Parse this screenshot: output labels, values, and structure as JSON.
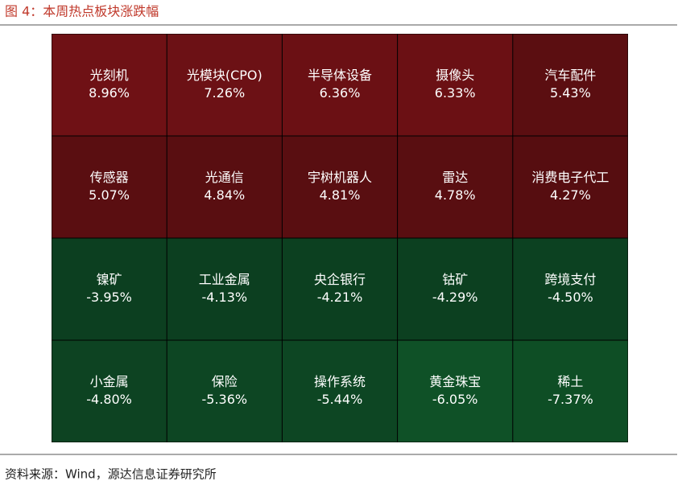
{
  "chart_data": {
    "type": "heatmap",
    "title": "图 4：本周热点板块涨跌幅",
    "source": "资料来源：Wind，源达信息证券研究所",
    "categories": [
      "光刻机",
      "光模块(CPO)",
      "半导体设备",
      "摄像头",
      "汽车配件",
      "传感器",
      "光通信",
      "宇树机器人",
      "雷达",
      "消费电子代工",
      "镍矿",
      "工业金属",
      "央企银行",
      "钴矿",
      "跨境支付",
      "小金属",
      "保险",
      "操作系统",
      "黄金珠宝",
      "稀土"
    ],
    "values": [
      8.96,
      7.26,
      6.36,
      6.33,
      5.43,
      5.07,
      4.84,
      4.81,
      4.78,
      4.27,
      -3.95,
      -4.13,
      -4.21,
      -4.29,
      -4.5,
      -4.8,
      -5.36,
      -5.44,
      -6.05,
      -7.37
    ],
    "value_labels": [
      "8.96%",
      "7.26%",
      "6.36%",
      "6.33%",
      "5.43%",
      "5.07%",
      "4.84%",
      "4.81%",
      "4.78%",
      "4.27%",
      "-3.95%",
      "-4.13%",
      "-4.21%",
      "-4.29%",
      "-4.50%",
      "-4.80%",
      "-5.36%",
      "-5.44%",
      "-6.05%",
      "-7.37%"
    ],
    "colors": [
      "#6f1115",
      "#6c1115",
      "#6b1014",
      "#6b1014",
      "#5b0e11",
      "#5a0e11",
      "#590e11",
      "#590e11",
      "#590e11",
      "#560d10",
      "#0c3f20",
      "#0c3f20",
      "#0c4020",
      "#0c4020",
      "#0c4121",
      "#0d4322",
      "#0d4623",
      "#0d4623",
      "#0f5127",
      "#0e4e25"
    ]
  }
}
